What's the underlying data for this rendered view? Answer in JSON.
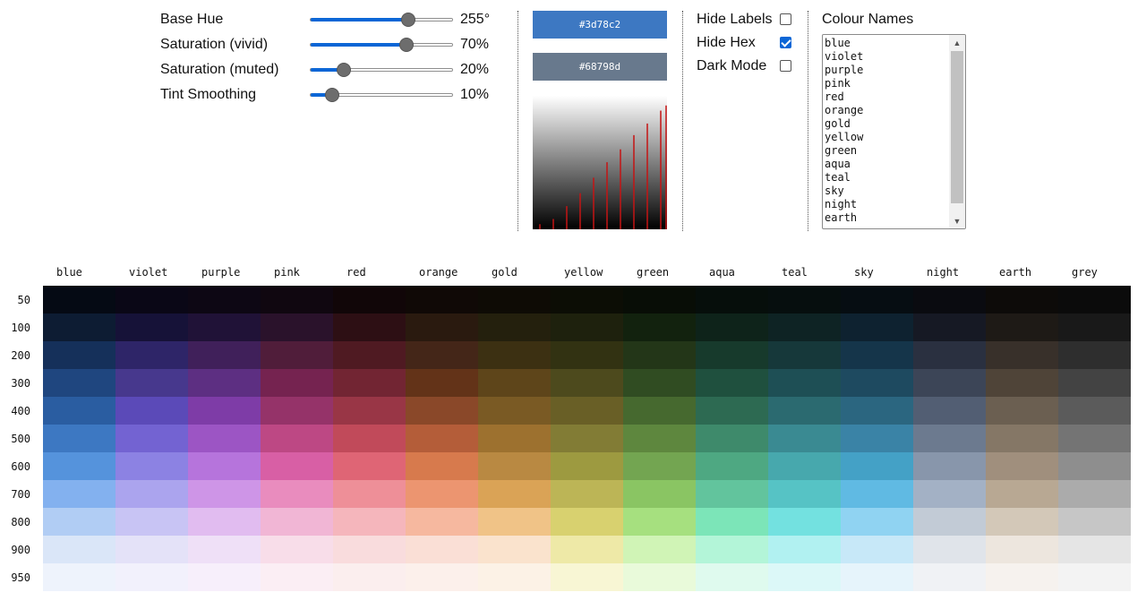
{
  "sliders": [
    {
      "label": "Base Hue",
      "value": "255°",
      "fraction": 0.68
    },
    {
      "label": "Saturation (vivid)",
      "value": "70%",
      "fraction": 0.67
    },
    {
      "label": "Saturation (muted)",
      "value": "20%",
      "fraction": 0.23
    },
    {
      "label": "Tint Smoothing",
      "value": "10%",
      "fraction": 0.15
    }
  ],
  "swatches": {
    "vivid": {
      "hex": "#3d78c2",
      "color": "#3d78c2"
    },
    "muted": {
      "hex": "#68798d",
      "color": "#68798d"
    }
  },
  "checkboxes": [
    {
      "label": "Hide Labels",
      "checked": false
    },
    {
      "label": "Hide Hex",
      "checked": true
    },
    {
      "label": "Dark Mode",
      "checked": false
    }
  ],
  "colour_names": {
    "title": "Colour Names",
    "items": [
      "blue",
      "violet",
      "purple",
      "pink",
      "red",
      "orange",
      "gold",
      "yellow",
      "green",
      "aqua",
      "teal",
      "sky",
      "night",
      "earth"
    ]
  },
  "palette": {
    "columns": [
      "blue",
      "violet",
      "purple",
      "pink",
      "red",
      "orange",
      "gold",
      "yellow",
      "green",
      "aqua",
      "teal",
      "sky",
      "night",
      "earth",
      "grey"
    ],
    "rows": [
      "50",
      "100",
      "200",
      "300",
      "400",
      "500",
      "600",
      "700",
      "800",
      "900",
      "950"
    ],
    "colors": [
      [
        "#050a14",
        "#0a0716",
        "#0d0714",
        "#100710",
        "#110608",
        "#100906",
        "#0e0b05",
        "#0c0d05",
        "#080d06",
        "#060e0b",
        "#060e0e",
        "#060d12",
        "#0a0b10",
        "#0d0b09",
        "#0b0b0b"
      ],
      [
        "#0d1c33",
        "#161238",
        "#201237",
        "#2a122b",
        "#2d0f14",
        "#2a1a0f",
        "#24200d",
        "#1e210d",
        "#12220e",
        "#0e231a",
        "#0e2324",
        "#0e2230",
        "#161924",
        "#1e1a16",
        "#191919"
      ],
      [
        "#15305a",
        "#2e2568",
        "#40205a",
        "#501d3a",
        "#4f1a22",
        "#442618",
        "#3c3012",
        "#323212",
        "#233618",
        "#173a2c",
        "#16383a",
        "#15354a",
        "#2a3040",
        "#38302a",
        "#2e2e2e"
      ],
      [
        "#1f467f",
        "#47388d",
        "#5d2f82",
        "#752350",
        "#722533",
        "#633318",
        "#5e451a",
        "#4d4a1d",
        "#304c22",
        "#1f503e",
        "#1e4f55",
        "#1e4a60",
        "#3c4557",
        "#4f4438",
        "#434343"
      ],
      [
        "#2a5da1",
        "#5b4ab8",
        "#7e3ca7",
        "#953369",
        "#993646",
        "#8a4829",
        "#7a5a24",
        "#695f26",
        "#46692f",
        "#2d6a52",
        "#2b6a70",
        "#2b6680",
        "#525e73",
        "#6b5f51",
        "#5b5b5b"
      ],
      [
        "#3d78c2",
        "#7363d2",
        "#9c55c4",
        "#bd4884",
        "#c14a5a",
        "#b45d39",
        "#9d712f",
        "#827c35",
        "#5e873e",
        "#3e8a6b",
        "#3a8a92",
        "#3a83a6",
        "#6c7a8f",
        "#857766",
        "#747474"
      ],
      [
        "#5593dc",
        "#8c82e3",
        "#b674dc",
        "#d85fa5",
        "#df6575",
        "#d77a4d",
        "#b98942",
        "#9d9a40",
        "#73a551",
        "#4ea882",
        "#47a8ad",
        "#44a1c6",
        "#8896ab",
        "#a08f7d",
        "#8e8e8e"
      ],
      [
        "#83b1ef",
        "#aba4ee",
        "#ce95e7",
        "#e98cbe",
        "#ee8f98",
        "#ec9570",
        "#daa356",
        "#bcb556",
        "#8ac563",
        "#62c49d",
        "#56c3c5",
        "#60bae3",
        "#a3b1c5",
        "#b8a893",
        "#ababab"
      ],
      [
        "#b1cdf4",
        "#c8c4f4",
        "#e1bcf0",
        "#f1b6d5",
        "#f5b6bc",
        "#f6b89f",
        "#f0c387",
        "#d8d16f",
        "#a6e07f",
        "#7ce5b8",
        "#73e1e0",
        "#90d3f2",
        "#c2cbd6",
        "#d3c8b8",
        "#c6c6c6"
      ],
      [
        "#dae6f8",
        "#e4e2f8",
        "#efe0f7",
        "#f8dde9",
        "#f9dcdd",
        "#fadfd6",
        "#fae3cd",
        "#eee9a7",
        "#d0f4b6",
        "#b3f5d8",
        "#b1f1f1",
        "#c7e8f8",
        "#e0e4ea",
        "#ede6de",
        "#e5e5e5"
      ],
      [
        "#eef3fc",
        "#f2f1fc",
        "#f7effb",
        "#fbeef4",
        "#fbeeee",
        "#fcf0eb",
        "#fcf2e6",
        "#f8f6d4",
        "#e9fada",
        "#dffaee",
        "#dcf8f8",
        "#e6f4fb",
        "#f0f2f5",
        "#f6f2ee",
        "#f3f3f3"
      ]
    ]
  },
  "gradient_lines": [
    0.04,
    0.08,
    0.18,
    0.28,
    0.4,
    0.52,
    0.62,
    0.73,
    0.82,
    0.92,
    0.96
  ]
}
